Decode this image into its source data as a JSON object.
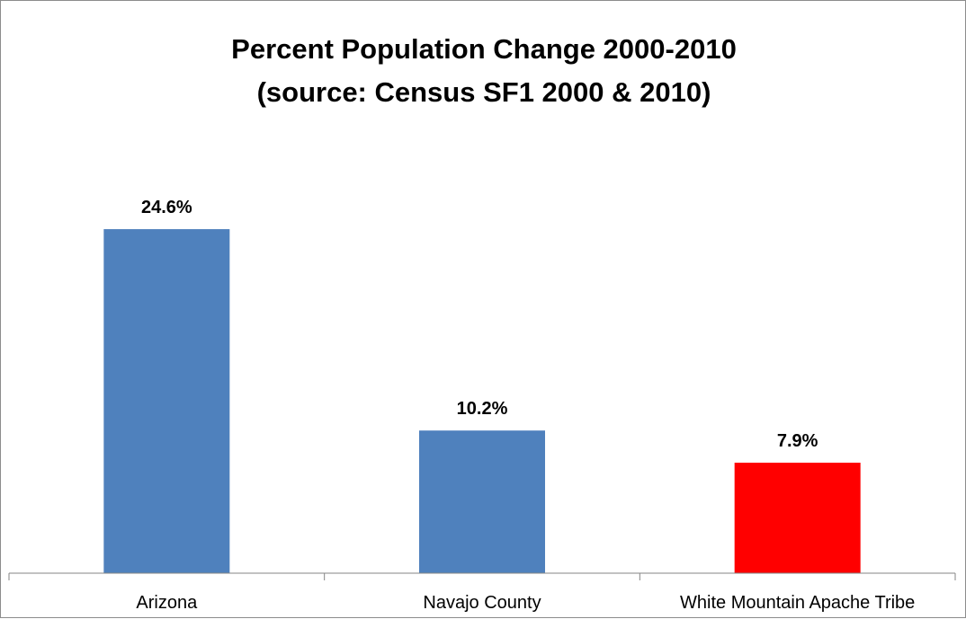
{
  "chart_data": {
    "type": "bar",
    "title": "Percent Population Change 2000-2010",
    "subtitle": "(source: Census SF1 2000 & 2010)",
    "xlabel": "",
    "ylabel": "",
    "categories": [
      "Arizona",
      "Navajo County",
      "White Mountain Apache Tribe"
    ],
    "values": [
      24.6,
      10.2,
      7.9
    ],
    "data_labels": [
      "24.6%",
      "10.2%",
      "7.9%"
    ],
    "bar_colors": [
      "#4f81bd",
      "#4f81bd",
      "#ff0000"
    ],
    "ylim": [
      0,
      30
    ],
    "grid": false,
    "legend": "none"
  }
}
